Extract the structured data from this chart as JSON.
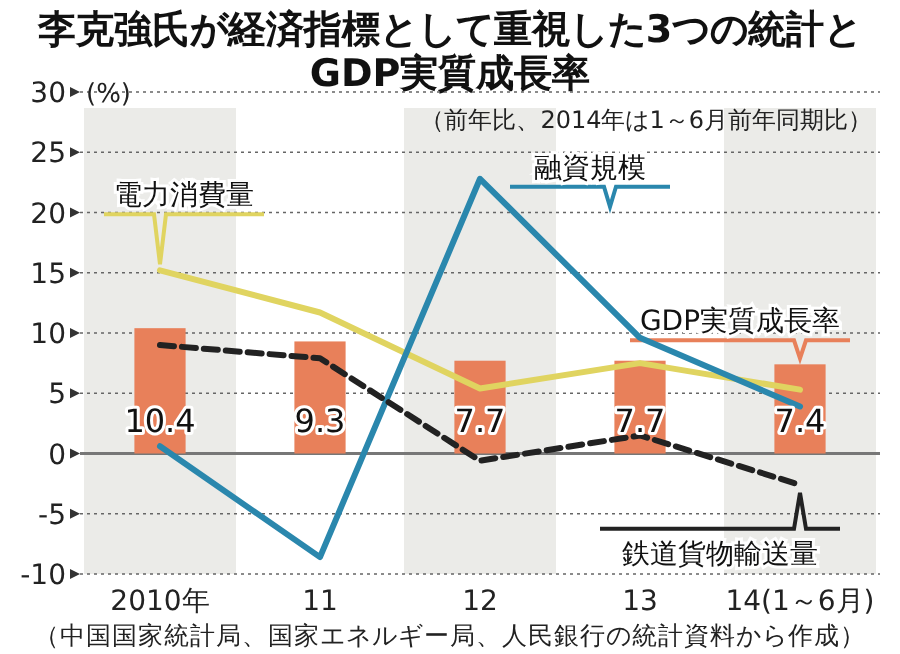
{
  "chart_data": {
    "type": "bar",
    "title": "李克強氏が経済指標として重視した3つの統計とGDP実質成長率",
    "subtitle": "（前年比、2014年は1～6月前年同期比）",
    "ylabel": "(%)",
    "categories": [
      "2010年",
      "11",
      "12",
      "13",
      "14(1～6月)"
    ],
    "series": [
      {
        "name": "GDP実質成長率",
        "color": "#e8805a",
        "values": [
          10.4,
          9.3,
          7.7,
          7.7,
          7.4
        ],
        "data_labels": true
      },
      {
        "name": "電力消費量",
        "type": "line",
        "color": "#e0d460",
        "values": [
          15.2,
          11.7,
          5.4,
          7.5,
          5.3
        ]
      },
      {
        "name": "融資規模",
        "type": "line",
        "color": "#2a87ad",
        "values": [
          0.6,
          -8.6,
          22.8,
          9.6,
          3.9
        ]
      },
      {
        "name": "鉄道貨物輸送量",
        "type": "line",
        "color": "#222222",
        "line_style": "dashed",
        "values": [
          9.0,
          7.9,
          -0.6,
          1.5,
          -2.6
        ]
      }
    ],
    "ylim": [
      -10,
      30
    ],
    "yticks": [
      -10,
      -5,
      0,
      5,
      10,
      15,
      20,
      25,
      30
    ],
    "grid": "y",
    "bands": [
      {
        "axis": "x",
        "from": "2010年",
        "to": "2010年",
        "color": "#ebebe8"
      },
      {
        "axis": "x",
        "from": "12",
        "to": "12",
        "color": "#ebebe8"
      },
      {
        "axis": "x",
        "from": "14(1～6月)",
        "to": "14(1～6月)",
        "color": "#ebebe8"
      }
    ],
    "annotations": [
      "（中国国家統計局、国家エネルギー局、人民銀行の統計資料から作成）"
    ]
  }
}
